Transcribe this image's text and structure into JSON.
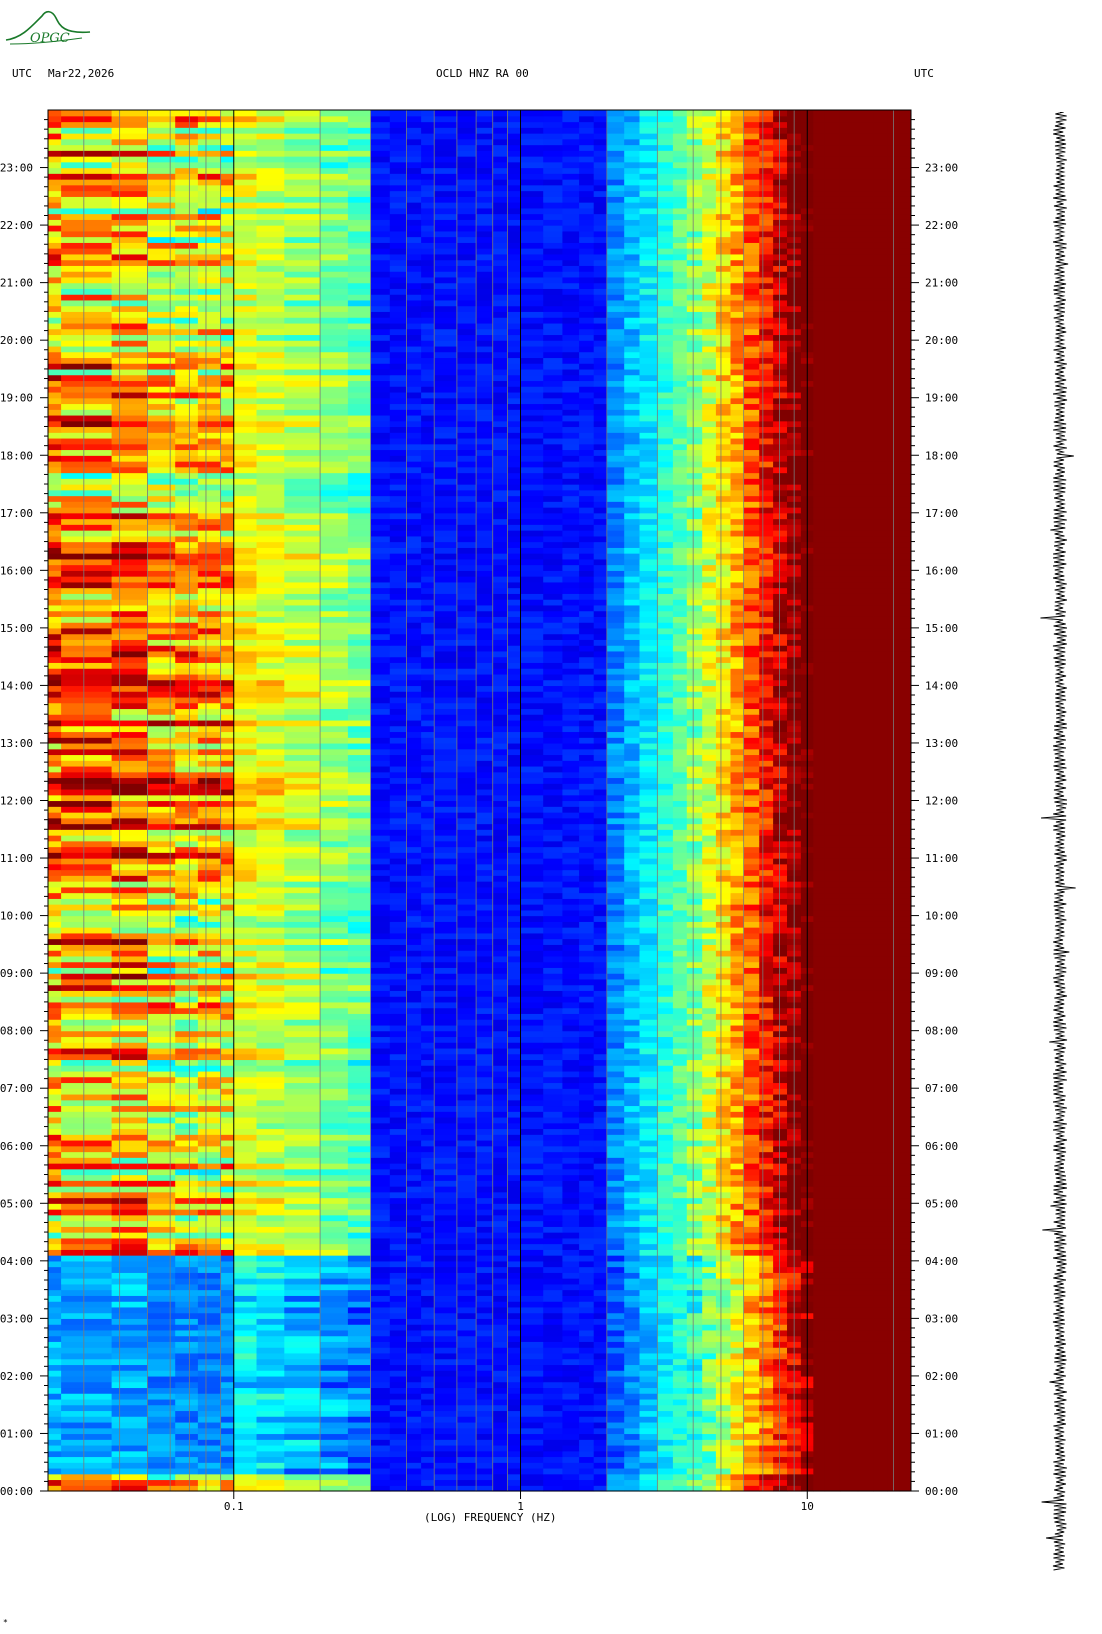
{
  "header": {
    "left_label": "UTC",
    "date": "Mar22,2026",
    "station": "OCLD HNZ RA 00",
    "right_label": "UTC"
  },
  "logo": {
    "text": "OPGC",
    "color": "#1a7a2a"
  },
  "footer": {
    "mark": "*"
  },
  "chart_data": {
    "type": "heatmap",
    "title": "OCLD HNZ RA 00",
    "xlabel": "(LOG) FREQUENCY (HZ)",
    "ylabel": "UTC",
    "x_scale": "log",
    "x_range_hz": [
      0.0225,
      23
    ],
    "x_ticks": [
      {
        "value": 0.1,
        "label": "0.1"
      },
      {
        "value": 1,
        "label": "1"
      },
      {
        "value": 10,
        "label": "10"
      }
    ],
    "y_range_hours": [
      0,
      24
    ],
    "y_ticks": [
      "00:00",
      "01:00",
      "02:00",
      "03:00",
      "04:00",
      "05:00",
      "06:00",
      "07:00",
      "08:00",
      "09:00",
      "10:00",
      "11:00",
      "12:00",
      "13:00",
      "14:00",
      "15:00",
      "16:00",
      "17:00",
      "18:00",
      "19:00",
      "20:00",
      "21:00",
      "22:00",
      "23:00"
    ],
    "colormap": [
      "#00007f",
      "#0000ff",
      "#0080ff",
      "#00ffff",
      "#80ff80",
      "#ffff00",
      "#ff8000",
      "#ff0000",
      "#7f0000"
    ],
    "features": {
      "quiet_period_hours": [
        0.3,
        4.1
      ],
      "low_freq_energy_band_hz": [
        0.025,
        0.1
      ],
      "high_freq_saturation_from_hz": 10
    }
  }
}
